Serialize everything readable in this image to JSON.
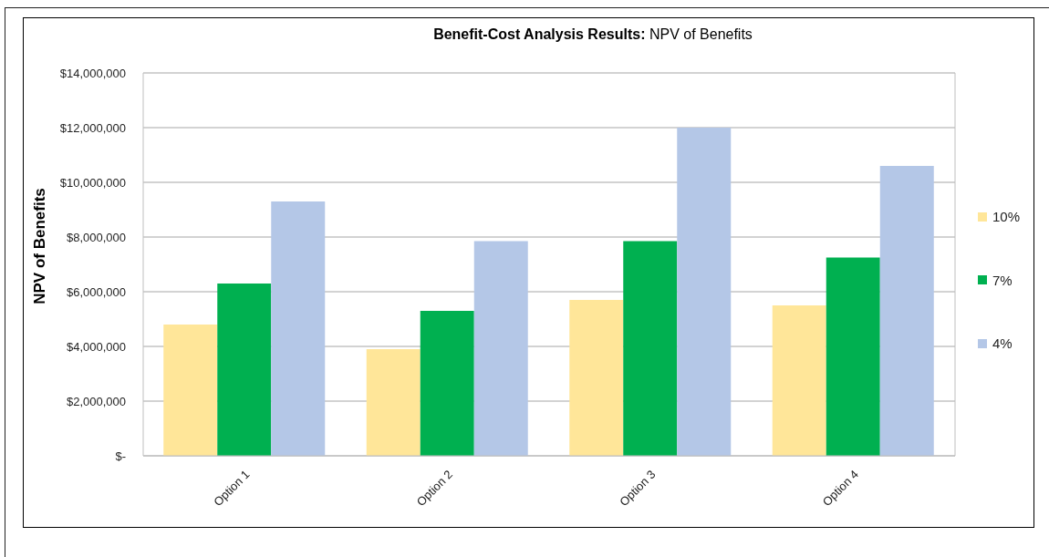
{
  "chart_data": {
    "type": "bar",
    "title": "Benefit-Cost Analysis Results: NPV of Benefits",
    "ylabel": "NPV of Benefits",
    "categories": [
      "Option 1",
      "Option 2",
      "Option 3",
      "Option 4"
    ],
    "series": [
      {
        "name": "10%",
        "color": "#ffe699",
        "values": [
          4800000,
          3900000,
          5700000,
          5500000
        ]
      },
      {
        "name": "7%",
        "color": "#00b050",
        "values": [
          6300000,
          5300000,
          7850000,
          7250000
        ]
      },
      {
        "name": "4%",
        "color": "#b4c7e7",
        "values": [
          9300000,
          7850000,
          12000000,
          10600000
        ]
      }
    ],
    "ylim": [
      0,
      14000000
    ],
    "yticks": [
      {
        "value": 0,
        "label": "$-"
      },
      {
        "value": 2000000,
        "label": "$2,000,000"
      },
      {
        "value": 4000000,
        "label": "$4,000,000"
      },
      {
        "value": 6000000,
        "label": "$6,000,000"
      },
      {
        "value": 8000000,
        "label": "$8,000,000"
      },
      {
        "value": 10000000,
        "label": "$10,000,000"
      },
      {
        "value": 12000000,
        "label": "$12,000,000"
      },
      {
        "value": 14000000,
        "label": "$14,000,000"
      }
    ],
    "grid": "y",
    "legend": "right"
  }
}
